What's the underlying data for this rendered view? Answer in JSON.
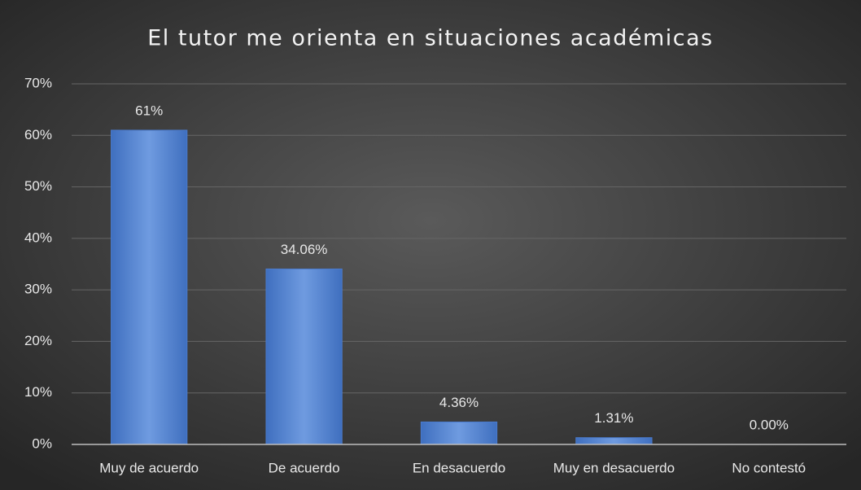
{
  "chart_data": {
    "type": "bar",
    "title": "El tutor me orienta en situaciones académicas",
    "categories": [
      "Muy de acuerdo",
      "De acuerdo",
      "En desacuerdo",
      "Muy en desacuerdo",
      "No contestó"
    ],
    "values": [
      61,
      34.06,
      4.36,
      1.31,
      0.0
    ],
    "value_labels": [
      "61%",
      "34.06%",
      "4.36%",
      "1.31%",
      "0.00%"
    ],
    "color": "#5b8ad6",
    "ylim": [
      0,
      70
    ],
    "yticks": [
      {
        "value": 0,
        "label": "0%"
      },
      {
        "value": 10,
        "label": "10%"
      },
      {
        "value": 20,
        "label": "20%"
      },
      {
        "value": 30,
        "label": "30%"
      },
      {
        "value": 40,
        "label": "40%"
      },
      {
        "value": 50,
        "label": "50%"
      },
      {
        "value": 60,
        "label": "60%"
      },
      {
        "value": 70,
        "label": "70%"
      }
    ],
    "grid": true
  }
}
